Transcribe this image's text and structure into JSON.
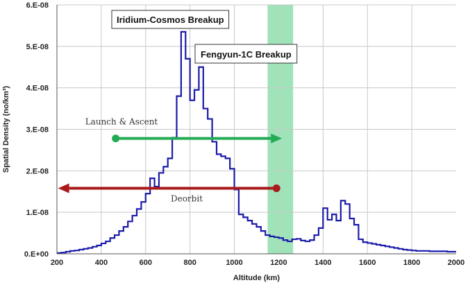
{
  "chart_data": {
    "type": "line",
    "xlabel": "Altitude (km)",
    "ylabel": "Spatial Density (no/km³)",
    "xlim": [
      200,
      2000
    ],
    "ylim": [
      0,
      6e-08
    ],
    "x_ticks": [
      200,
      400,
      600,
      800,
      1000,
      1200,
      1400,
      1600,
      1800,
      2000
    ],
    "y_ticks": [
      0,
      1e-08,
      2e-08,
      3e-08,
      4e-08,
      5e-08,
      6e-08
    ],
    "y_tick_labels": [
      "0.E+00",
      "1.E-08",
      "2.E-08",
      "3.E-08",
      "4.E-08",
      "5.E-08",
      "6.E-08"
    ],
    "grid": true,
    "line_color": "#1a1aa8",
    "highlight_band": {
      "x_start": 1150,
      "x_end": 1265,
      "color": "#7fd9a0"
    },
    "series": [
      {
        "x": [
          200,
          220,
          240,
          260,
          280,
          300,
          320,
          340,
          360,
          380,
          400,
          420,
          440,
          460,
          480,
          500,
          520,
          540,
          560,
          580,
          600,
          620,
          640,
          660,
          680,
          700,
          720,
          740,
          760,
          780,
          800,
          820,
          840,
          860,
          880,
          900,
          920,
          940,
          960,
          980,
          1000,
          1020,
          1040,
          1060,
          1080,
          1100,
          1120,
          1140,
          1160,
          1180,
          1200,
          1220,
          1240,
          1260,
          1280,
          1300,
          1320,
          1340,
          1360,
          1380,
          1400,
          1420,
          1440,
          1460,
          1480,
          1500,
          1520,
          1540,
          1560,
          1580,
          1600,
          1620,
          1640,
          1660,
          1680,
          1700,
          1720,
          1740,
          1760,
          1780,
          1800,
          1820,
          1840,
          1860,
          1880,
          1900,
          1920,
          1940,
          1960,
          1980
        ],
        "values": [
          2e-10,
          3e-10,
          5e-10,
          7e-10,
          8e-10,
          1e-09,
          1.2e-09,
          1.4e-09,
          1.7e-09,
          2e-09,
          2.5e-09,
          3e-09,
          3.8e-09,
          4.5e-09,
          5.5e-09,
          6.5e-09,
          7.8e-09,
          9.2e-09,
          1.08e-08,
          1.25e-08,
          1.45e-08,
          1.82e-08,
          1.62e-08,
          1.95e-08,
          2.1e-08,
          2.3e-08,
          2.8e-08,
          3.8e-08,
          5.35e-08,
          4.7e-08,
          3.7e-08,
          3.95e-08,
          4.5e-08,
          3.5e-08,
          3.25e-08,
          2.7e-08,
          2.4e-08,
          2.35e-08,
          2.3e-08,
          2.05e-08,
          1.55e-08,
          9.5e-09,
          8.8e-09,
          8e-09,
          7.2e-09,
          6.5e-09,
          5.5e-09,
          4.5e-09,
          4.2e-09,
          4e-09,
          3.8e-09,
          3.3e-09,
          3e-09,
          3.5e-09,
          3.6e-09,
          3.2e-09,
          3e-09,
          3.3e-09,
          4.5e-09,
          6.2e-09,
          1.1e-08,
          8.2e-09,
          9.5e-09,
          8e-09,
          1.28e-08,
          1.2e-08,
          8.5e-09,
          7e-09,
          3.5e-09,
          2.8e-09,
          2.6e-09,
          2.4e-09,
          2.2e-09,
          2e-09,
          1.8e-09,
          1.6e-09,
          1.4e-09,
          1.2e-09,
          1e-09,
          9e-10,
          8e-10,
          7e-10,
          7e-10,
          7e-10,
          6e-10,
          6e-10,
          6e-10,
          6e-10,
          5e-10,
          5e-10
        ]
      }
    ],
    "annotations": {
      "iridium": {
        "text": "Iridium-Cosmos Breakup"
      },
      "fengyun": {
        "text": "Fengyun-1C Breakup"
      },
      "launch": {
        "text": "Launch & Ascent",
        "from_x": 465,
        "to_x": 1215,
        "y": 2.78e-08,
        "color": "#22aa55"
      },
      "deorbit": {
        "text": "Deorbit",
        "from_x": 1190,
        "to_x": 205,
        "y": 1.58e-08,
        "color": "#aa1a1a"
      }
    }
  }
}
